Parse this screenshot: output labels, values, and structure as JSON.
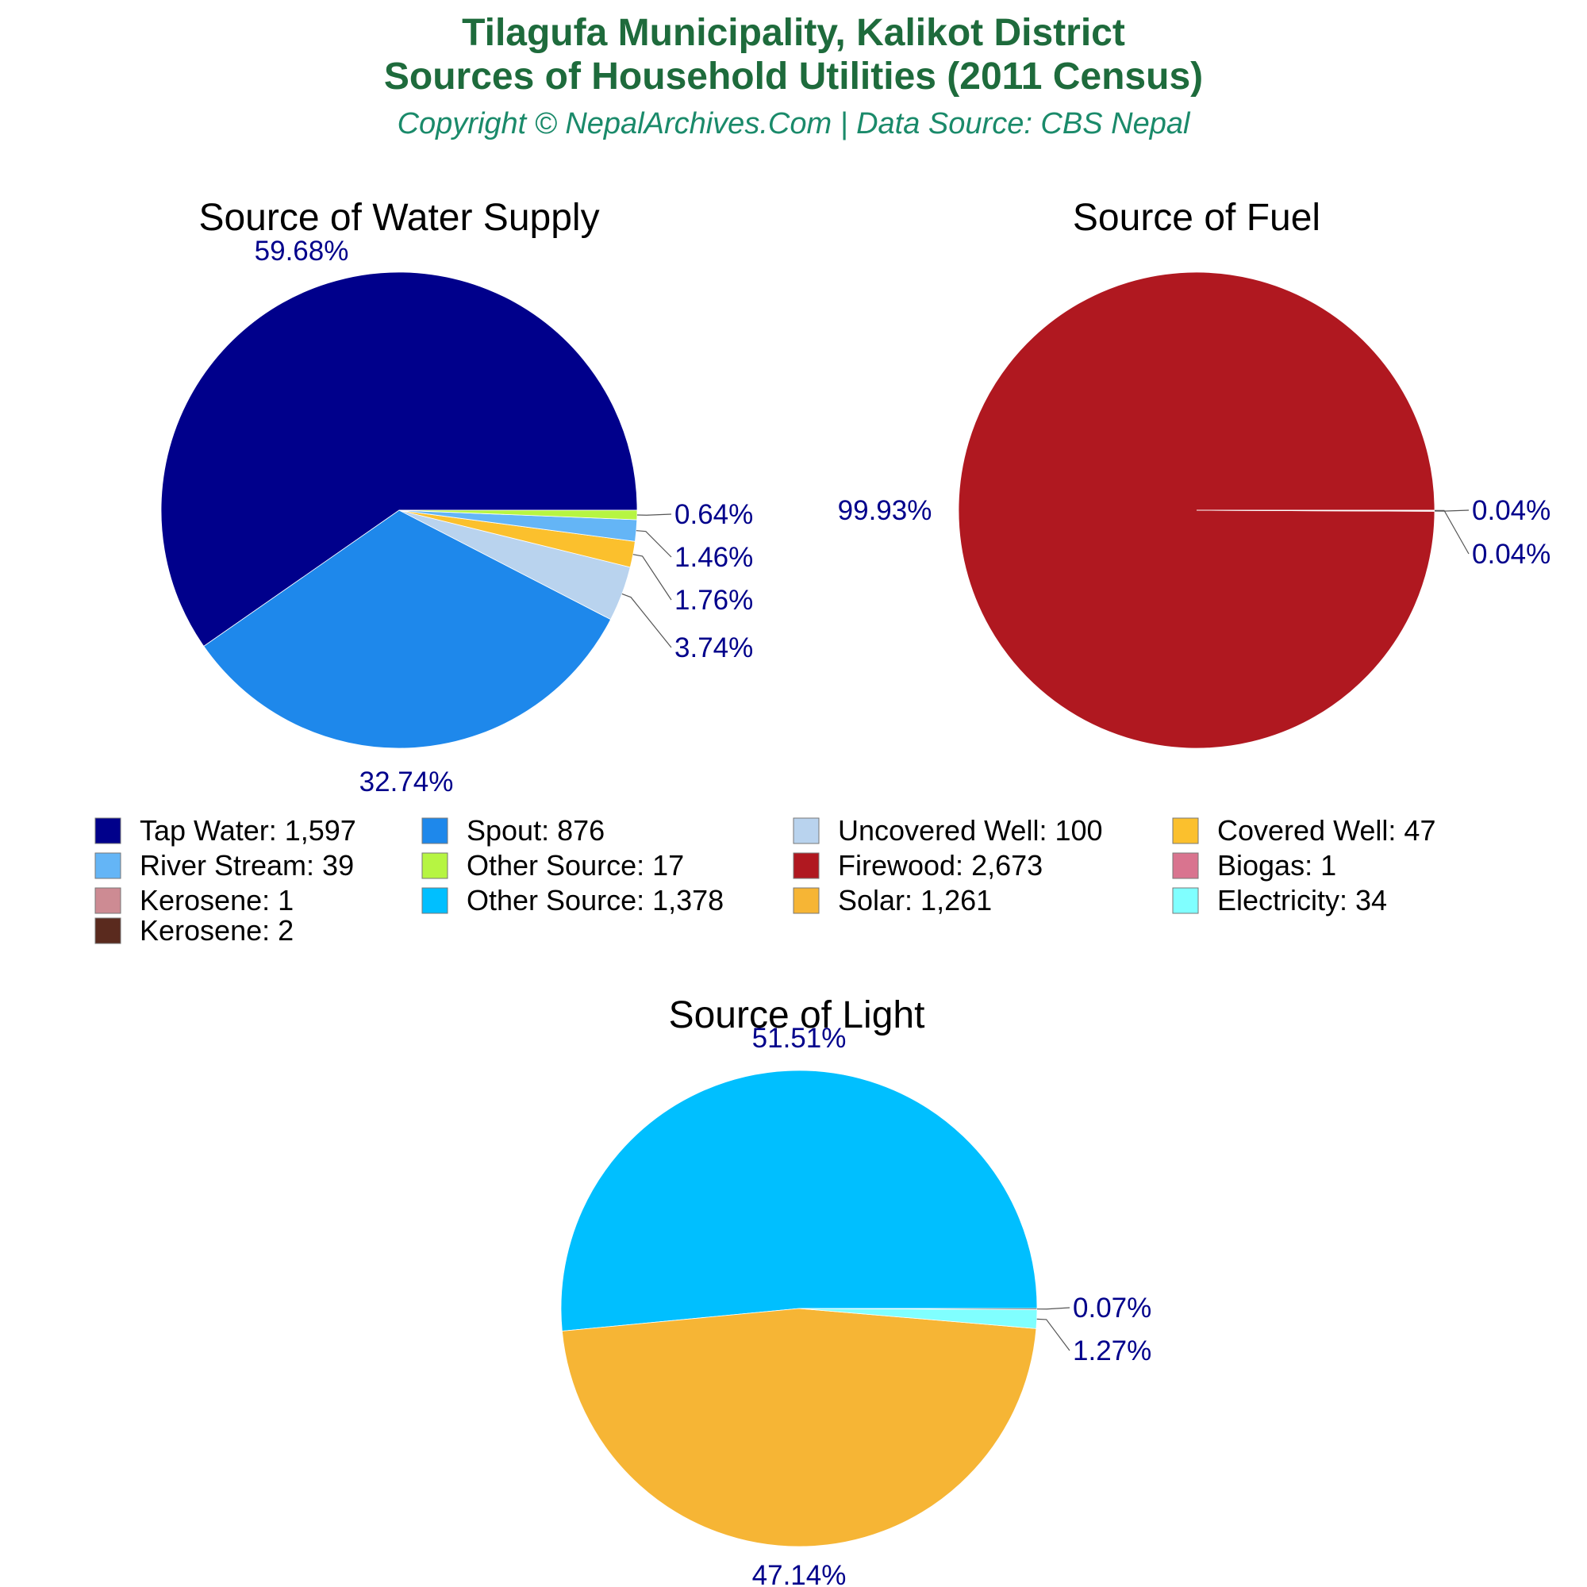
{
  "header": {
    "title_line1": "Tilagufa Municipality, Kalikot District",
    "title_line2": "Sources of Household Utilities (2011 Census)",
    "subtitle": "Copyright © NepalArchives.Com | Data Source: CBS Nepal"
  },
  "colors": {
    "title": "#1e6b3c",
    "subtitle": "#1a8a6a",
    "percent_label": "#00008b",
    "leader_line": "#555555"
  },
  "chart_data": [
    {
      "type": "pie",
      "title": "Source of Water Supply",
      "slices": [
        {
          "label": "Tap Water",
          "value": 1597,
          "percent": "59.68%",
          "color": "#00008b"
        },
        {
          "label": "Spout",
          "value": 876,
          "percent": "32.74%",
          "color": "#1e88eb"
        },
        {
          "label": "Uncovered Well",
          "value": 100,
          "percent": "3.74%",
          "color": "#b9d3ee"
        },
        {
          "label": "Covered Well",
          "value": 47,
          "percent": "1.76%",
          "color": "#fbc02d"
        },
        {
          "label": "River Stream",
          "value": 39,
          "percent": "1.46%",
          "color": "#64b5f6"
        },
        {
          "label": "Other Source",
          "value": 17,
          "percent": "0.64%",
          "color": "#b6f542"
        }
      ]
    },
    {
      "type": "pie",
      "title": "Source of Fuel",
      "slices": [
        {
          "label": "Firewood",
          "value": 2673,
          "percent": "99.93%",
          "color": "#b01820"
        },
        {
          "label": "Biogas",
          "value": 1,
          "percent": "0.04%",
          "color": "#d9748f"
        },
        {
          "label": "Kerosene",
          "value": 1,
          "percent": "0.04%",
          "color": "#cd8b93"
        }
      ]
    },
    {
      "type": "pie",
      "title": "Source of Light",
      "slices": [
        {
          "label": "Other Source",
          "value": 1378,
          "percent": "51.51%",
          "color": "#00bfff"
        },
        {
          "label": "Solar",
          "value": 1261,
          "percent": "47.14%",
          "color": "#f6b535"
        },
        {
          "label": "Electricity",
          "value": 34,
          "percent": "1.27%",
          "color": "#80ffff"
        },
        {
          "label": "Kerosene",
          "value": 2,
          "percent": "0.07%",
          "color": "#5a2a1e"
        }
      ]
    }
  ],
  "legend": {
    "items": [
      {
        "text": "Tap Water: 1,597",
        "color": "#00008b"
      },
      {
        "text": "Spout: 876",
        "color": "#1e88eb"
      },
      {
        "text": "Uncovered Well: 100",
        "color": "#b9d3ee"
      },
      {
        "text": "Covered Well: 47",
        "color": "#fbc02d"
      },
      {
        "text": "River Stream: 39",
        "color": "#64b5f6"
      },
      {
        "text": "Other Source: 17",
        "color": "#b6f542"
      },
      {
        "text": "Firewood: 2,673",
        "color": "#b01820"
      },
      {
        "text": "Biogas: 1",
        "color": "#d9748f"
      },
      {
        "text": "Kerosene: 1",
        "color": "#cd8b93"
      },
      {
        "text": "Other Source: 1,378",
        "color": "#00bfff"
      },
      {
        "text": "Solar: 1,261",
        "color": "#f6b535"
      },
      {
        "text": "Electricity: 34",
        "color": "#80ffff"
      },
      {
        "text": "Kerosene: 2",
        "color": "#5a2a1e"
      }
    ]
  }
}
